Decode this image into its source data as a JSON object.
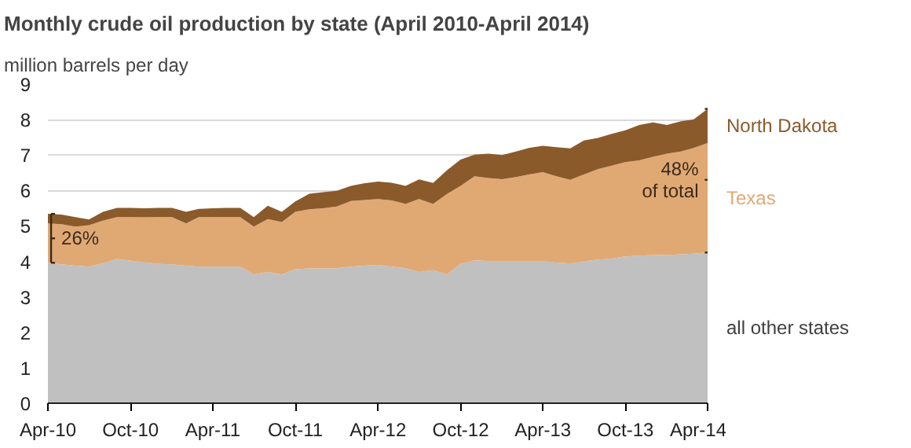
{
  "chart_data": {
    "type": "area",
    "stacked": true,
    "title": "Monthly crude oil production by state (April 2010-April 2014)",
    "ylabel": "million barrels per day",
    "x": [
      "2010-04",
      "2010-05",
      "2010-06",
      "2010-07",
      "2010-08",
      "2010-09",
      "2010-10",
      "2010-11",
      "2010-12",
      "2011-01",
      "2011-02",
      "2011-03",
      "2011-04",
      "2011-05",
      "2011-06",
      "2011-07",
      "2011-08",
      "2011-09",
      "2011-10",
      "2011-11",
      "2011-12",
      "2012-01",
      "2012-02",
      "2012-03",
      "2012-04",
      "2012-05",
      "2012-06",
      "2012-07",
      "2012-08",
      "2012-09",
      "2012-10",
      "2012-11",
      "2012-12",
      "2013-01",
      "2013-02",
      "2013-03",
      "2013-04",
      "2013-05",
      "2013-06",
      "2013-07",
      "2013-08",
      "2013-09",
      "2013-10",
      "2013-11",
      "2013-12",
      "2014-01",
      "2014-02",
      "2014-03",
      "2014-04"
    ],
    "series": [
      {
        "name": "all other states",
        "color": "#c0c0c0",
        "values": [
          3.96,
          3.92,
          3.88,
          3.85,
          3.95,
          4.07,
          4.02,
          3.98,
          3.93,
          3.92,
          3.88,
          3.85,
          3.85,
          3.85,
          3.85,
          3.63,
          3.7,
          3.63,
          3.78,
          3.8,
          3.8,
          3.81,
          3.85,
          3.88,
          3.9,
          3.85,
          3.81,
          3.7,
          3.75,
          3.63,
          3.93,
          4.03,
          4.01,
          4.01,
          4.0,
          4.01,
          4.01,
          3.97,
          3.94,
          4.0,
          4.05,
          4.08,
          4.14,
          4.16,
          4.18,
          4.18,
          4.2,
          4.22,
          4.25
        ]
      },
      {
        "name": "Texas",
        "color": "#e0a974",
        "values": [
          1.11,
          1.13,
          1.1,
          1.17,
          1.2,
          1.18,
          1.23,
          1.26,
          1.32,
          1.33,
          1.19,
          1.4,
          1.4,
          1.4,
          1.4,
          1.35,
          1.49,
          1.48,
          1.62,
          1.67,
          1.7,
          1.74,
          1.85,
          1.85,
          1.86,
          1.87,
          1.81,
          2.06,
          1.87,
          2.27,
          2.2,
          2.37,
          2.34,
          2.31,
          2.38,
          2.44,
          2.51,
          2.43,
          2.36,
          2.45,
          2.55,
          2.62,
          2.66,
          2.69,
          2.77,
          2.86,
          2.9,
          2.98,
          3.09
        ]
      },
      {
        "name": "North Dakota",
        "color": "#8b5a2b",
        "values": [
          0.27,
          0.27,
          0.27,
          0.16,
          0.25,
          0.26,
          0.26,
          0.26,
          0.26,
          0.26,
          0.33,
          0.23,
          0.25,
          0.26,
          0.26,
          0.27,
          0.38,
          0.29,
          0.29,
          0.44,
          0.45,
          0.44,
          0.43,
          0.47,
          0.49,
          0.5,
          0.51,
          0.55,
          0.59,
          0.67,
          0.74,
          0.61,
          0.69,
          0.68,
          0.72,
          0.75,
          0.74,
          0.82,
          0.89,
          0.96,
          0.88,
          0.9,
          0.9,
          1.0,
          0.97,
          0.81,
          0.85,
          0.8,
          0.96
        ]
      }
    ],
    "xlim": [
      "2010-04",
      "2014-04"
    ],
    "xticks": [
      {
        "value": "2010-04",
        "label": "Apr-10"
      },
      {
        "value": "2010-10",
        "label": "Oct-10"
      },
      {
        "value": "2011-04",
        "label": "Apr-11"
      },
      {
        "value": "2011-10",
        "label": "Oct-11"
      },
      {
        "value": "2012-04",
        "label": "Apr-12"
      },
      {
        "value": "2012-10",
        "label": "Oct-12"
      },
      {
        "value": "2013-04",
        "label": "Apr-13"
      },
      {
        "value": "2013-10",
        "label": "Oct-13"
      },
      {
        "value": "2014-04",
        "label": "Apr-14"
      }
    ],
    "ylim": [
      0,
      9
    ],
    "yticks": [
      0,
      1,
      2,
      3,
      4,
      5,
      6,
      7,
      8,
      9
    ],
    "grid": "y",
    "annotations": [
      {
        "text": "26%",
        "x": "2010-04",
        "y": 4.65
      },
      {
        "text": "48%\nof total",
        "x": "2014-04",
        "y": 6.3
      }
    ]
  }
}
